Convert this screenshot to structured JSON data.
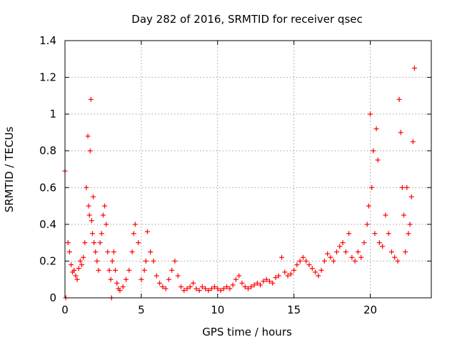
{
  "chart_data": {
    "type": "scatter",
    "title": "Day 282 of 2016, SRMTID for receiver qsec",
    "xlabel": "GPS time / hours",
    "ylabel": "SRMTID / TECUs",
    "xlim": [
      0,
      24
    ],
    "ylim": [
      0,
      1.4
    ],
    "xticks": [
      0,
      5,
      10,
      15,
      20
    ],
    "xtick_labels": [
      "0",
      "5",
      "10",
      "15",
      "20"
    ],
    "yticks": [
      0,
      0.2,
      0.4,
      0.6,
      0.8,
      1.0,
      1.2,
      1.4
    ],
    "ytick_labels": [
      "0",
      "0.2",
      "0.4",
      "0.6",
      "0.8",
      "1",
      "1.2",
      "1.4"
    ],
    "grid": true,
    "marker": "+",
    "series": [
      {
        "name": "qsec",
        "color": "#ff0000",
        "x": [
          0.0,
          0.05,
          0.2,
          0.3,
          0.4,
          0.5,
          0.6,
          0.7,
          0.8,
          0.9,
          1.0,
          1.1,
          1.2,
          1.3,
          1.4,
          1.5,
          1.55,
          1.6,
          1.65,
          1.7,
          1.75,
          1.8,
          1.85,
          1.9,
          2.0,
          2.1,
          2.2,
          2.3,
          2.4,
          2.5,
          2.6,
          2.7,
          2.8,
          2.9,
          3.0,
          3.05,
          3.1,
          3.2,
          3.3,
          3.4,
          3.5,
          3.6,
          3.8,
          4.0,
          4.2,
          4.4,
          4.5,
          4.6,
          4.8,
          5.0,
          5.2,
          5.3,
          5.4,
          5.6,
          5.8,
          6.0,
          6.2,
          6.4,
          6.6,
          6.8,
          7.0,
          7.2,
          7.4,
          7.6,
          7.8,
          8.0,
          8.2,
          8.4,
          8.6,
          8.8,
          9.0,
          9.2,
          9.4,
          9.6,
          9.8,
          10.0,
          10.2,
          10.4,
          10.6,
          10.8,
          11.0,
          11.2,
          11.4,
          11.6,
          11.8,
          12.0,
          12.2,
          12.4,
          12.6,
          12.8,
          13.0,
          13.2,
          13.4,
          13.6,
          13.8,
          14.0,
          14.2,
          14.4,
          14.6,
          14.8,
          15.0,
          15.2,
          15.4,
          15.6,
          15.8,
          16.0,
          16.2,
          16.4,
          16.6,
          16.8,
          17.0,
          17.2,
          17.4,
          17.6,
          17.8,
          18.0,
          18.2,
          18.4,
          18.6,
          18.8,
          19.0,
          19.2,
          19.4,
          19.6,
          19.8,
          19.9,
          20.0,
          20.1,
          20.2,
          20.3,
          20.4,
          20.5,
          20.6,
          20.8,
          21.0,
          21.2,
          21.4,
          21.6,
          21.8,
          21.9,
          22.0,
          22.1,
          22.2,
          22.3,
          22.4,
          22.5,
          22.6,
          22.7,
          22.8,
          22.9
        ],
        "values": [
          0.69,
          0.0,
          0.3,
          0.25,
          0.18,
          0.14,
          0.15,
          0.12,
          0.1,
          0.16,
          0.2,
          0.18,
          0.22,
          0.3,
          0.6,
          0.88,
          0.5,
          0.45,
          0.8,
          1.08,
          0.42,
          0.35,
          0.55,
          0.3,
          0.25,
          0.2,
          0.15,
          0.3,
          0.35,
          0.45,
          0.5,
          0.4,
          0.25,
          0.15,
          0.1,
          0.0,
          0.2,
          0.25,
          0.15,
          0.08,
          0.05,
          0.04,
          0.06,
          0.1,
          0.15,
          0.25,
          0.35,
          0.4,
          0.3,
          0.1,
          0.15,
          0.2,
          0.36,
          0.25,
          0.2,
          0.12,
          0.08,
          0.06,
          0.05,
          0.1,
          0.15,
          0.2,
          0.12,
          0.06,
          0.04,
          0.05,
          0.06,
          0.08,
          0.05,
          0.04,
          0.06,
          0.05,
          0.04,
          0.05,
          0.06,
          0.05,
          0.04,
          0.05,
          0.06,
          0.05,
          0.07,
          0.1,
          0.12,
          0.08,
          0.06,
          0.05,
          0.06,
          0.07,
          0.08,
          0.07,
          0.09,
          0.1,
          0.09,
          0.08,
          0.11,
          0.12,
          0.22,
          0.14,
          0.12,
          0.13,
          0.15,
          0.18,
          0.2,
          0.22,
          0.2,
          0.18,
          0.16,
          0.14,
          0.12,
          0.15,
          0.2,
          0.24,
          0.22,
          0.2,
          0.25,
          0.28,
          0.3,
          0.25,
          0.35,
          0.22,
          0.2,
          0.25,
          0.22,
          0.3,
          0.4,
          0.5,
          1.0,
          0.6,
          0.8,
          0.35,
          0.92,
          0.75,
          0.3,
          0.28,
          0.45,
          0.35,
          0.25,
          0.22,
          0.2,
          1.08,
          0.9,
          0.6,
          0.45,
          0.25,
          0.6,
          0.35,
          0.4,
          0.55,
          0.85,
          1.25
        ]
      }
    ]
  }
}
